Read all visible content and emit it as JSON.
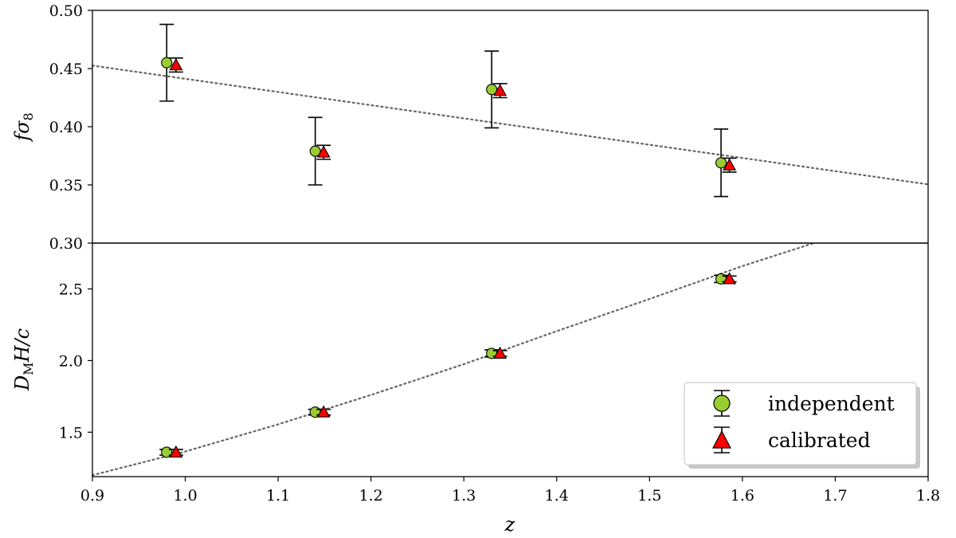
{
  "chart_data": [
    {
      "type": "scatter",
      "panel": "top",
      "ylabel": "fσ8",
      "ylabel_main": "f",
      "ylabel_sigma": "σ",
      "ylabel_sub": "8",
      "xlim": [
        0.9,
        1.8
      ],
      "ylim": [
        0.3,
        0.5
      ],
      "yticks": [
        "0.30",
        "0.35",
        "0.40",
        "0.45",
        "0.50"
      ],
      "grid": false,
      "series": [
        {
          "name": "independent",
          "marker": "circle",
          "color": "#9acd32",
          "points": [
            {
              "x": 0.98,
              "y": 0.455,
              "err": 0.033
            },
            {
              "x": 1.14,
              "y": 0.379,
              "err": 0.029
            },
            {
              "x": 1.33,
              "y": 0.432,
              "err": 0.033
            },
            {
              "x": 1.577,
              "y": 0.369,
              "err": 0.029
            }
          ]
        },
        {
          "name": "calibrated",
          "marker": "triangle",
          "color": "#ff0000",
          "points": [
            {
              "x": 0.99,
              "y": 0.453,
              "err": 0.006
            },
            {
              "x": 1.149,
              "y": 0.378,
              "err": 0.006
            },
            {
              "x": 1.339,
              "y": 0.431,
              "err": 0.006
            },
            {
              "x": 1.586,
              "y": 0.367,
              "err": 0.006
            }
          ]
        }
      ],
      "model_line": {
        "style": "dotted",
        "color": "#666666",
        "points": [
          [
            0.9,
            0.4525
          ],
          [
            1.8,
            0.3505
          ]
        ]
      }
    },
    {
      "type": "scatter",
      "panel": "bottom",
      "ylabel": "D_M H/c",
      "ylabel_D": "D",
      "ylabel_sub": "M",
      "ylabel_rest": "H/c",
      "xlabel": "z",
      "xlim": [
        0.9,
        1.8
      ],
      "ylim": [
        1.19,
        2.82
      ],
      "xticks": [
        "0.9",
        "1.0",
        "1.1",
        "1.2",
        "1.3",
        "1.4",
        "1.5",
        "1.6",
        "1.7",
        "1.8"
      ],
      "yticks": [
        "1.5",
        "2.0",
        "2.5"
      ],
      "grid": false,
      "series": [
        {
          "name": "independent",
          "marker": "circle",
          "color": "#9acd32",
          "points": [
            {
              "x": 0.98,
              "y": 1.36,
              "err": 0.02
            },
            {
              "x": 1.14,
              "y": 1.64,
              "err": 0.02
            },
            {
              "x": 1.33,
              "y": 2.05,
              "err": 0.025
            },
            {
              "x": 1.577,
              "y": 2.57,
              "err": 0.025
            }
          ]
        },
        {
          "name": "calibrated",
          "marker": "triangle",
          "color": "#ff0000",
          "points": [
            {
              "x": 0.99,
              "y": 1.36,
              "err": 0.02
            },
            {
              "x": 1.149,
              "y": 1.64,
              "err": 0.02
            },
            {
              "x": 1.339,
              "y": 2.05,
              "err": 0.02
            },
            {
              "x": 1.586,
              "y": 2.57,
              "err": 0.02
            }
          ]
        }
      ],
      "model_line": {
        "style": "dotted",
        "color": "#666666",
        "points": [
          [
            0.9,
            1.2
          ],
          [
            1.0,
            1.365
          ],
          [
            1.1,
            1.555
          ],
          [
            1.2,
            1.76
          ],
          [
            1.3,
            1.975
          ],
          [
            1.4,
            2.205
          ],
          [
            1.5,
            2.43
          ],
          [
            1.6,
            2.66
          ],
          [
            1.677,
            2.82
          ]
        ]
      },
      "legend": {
        "placement": "bottom-right",
        "entries": [
          {
            "label": "independent",
            "marker": "circle"
          },
          {
            "label": "calibrated",
            "marker": "triangle"
          }
        ]
      }
    }
  ]
}
